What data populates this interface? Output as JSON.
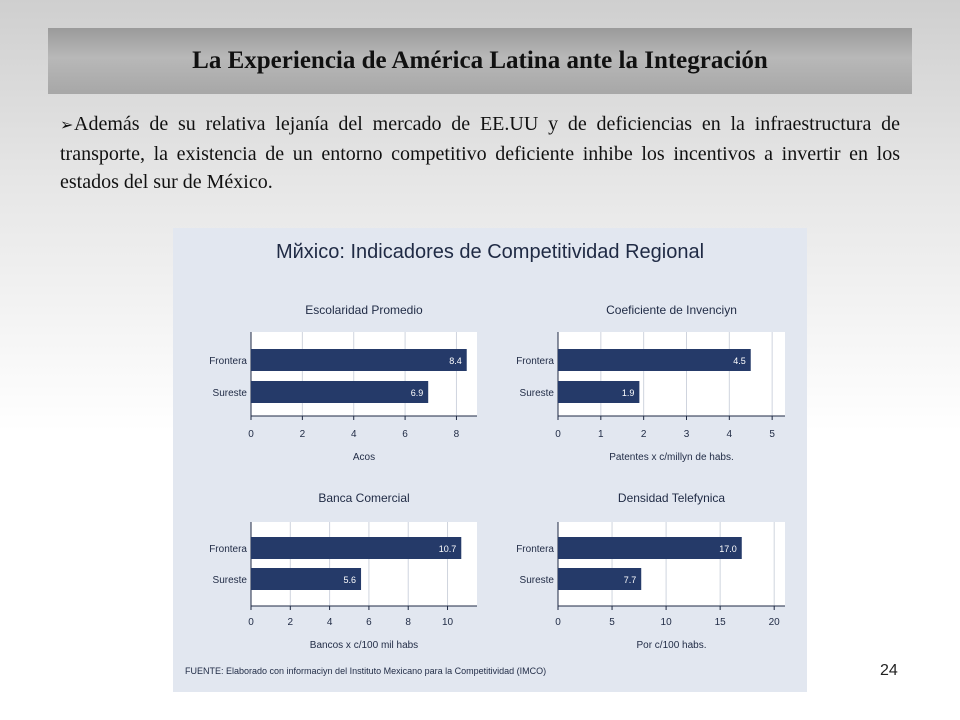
{
  "slide": {
    "title": "La Experiencia de América Latina ante la Integración",
    "bullet_symbol": "➢",
    "bullet_text": "Además de su relativa lejanía del mercado de EE.UU y de deficiencias en la infraestructura de transporte, la existencia de un entorno competitivo deficiente inhibe los incentivos a invertir en los estados del sur de México.",
    "page_number": "24"
  },
  "chart_panel": {
    "title": "Mйxico: Indicadores de Competitividad Regional",
    "source": "FUENTE: Elaborado con informaciуn del Instituto Mexicano para la Competitividad (IMCO)",
    "background_color": "#e2e7f0",
    "bar_color": "#253a69"
  },
  "chart_data": [
    {
      "type": "bar",
      "orientation": "horizontal",
      "title": "Escolaridad Promedio",
      "xlabel": "Acos",
      "categories": [
        "Frontera",
        "Sureste"
      ],
      "values": [
        8.4,
        6.9
      ],
      "value_labels": [
        "8.4",
        "6.9"
      ],
      "xlim": [
        0,
        8.8
      ],
      "ticks": [
        0,
        2,
        4,
        6,
        8
      ],
      "tick_labels": [
        "0",
        "2",
        "4",
        "6",
        "8"
      ],
      "grid": true
    },
    {
      "type": "bar",
      "orientation": "horizontal",
      "title": "Coeficiente de Invenciуn",
      "xlabel": "Patentes x c/millуn de habs.",
      "categories": [
        "Frontera",
        "Sureste"
      ],
      "values": [
        4.5,
        1.9
      ],
      "value_labels": [
        "4.5",
        "1.9"
      ],
      "xlim": [
        0,
        5.3
      ],
      "ticks": [
        0,
        1,
        2,
        3,
        4,
        5
      ],
      "tick_labels": [
        "0",
        "1",
        "2",
        "3",
        "4",
        "5"
      ],
      "grid": true
    },
    {
      "type": "bar",
      "orientation": "horizontal",
      "title": "Banca Comercial",
      "xlabel": "Bancos x c/100 mil habs",
      "categories": [
        "Frontera",
        "Sureste"
      ],
      "values": [
        10.7,
        5.6
      ],
      "value_labels": [
        "10.7",
        "5.6"
      ],
      "xlim": [
        0,
        11.5
      ],
      "ticks": [
        0,
        2,
        4,
        6,
        8,
        10
      ],
      "tick_labels": [
        "0",
        "2",
        "4",
        "6",
        "8",
        "10"
      ],
      "grid": true
    },
    {
      "type": "bar",
      "orientation": "horizontal",
      "title": "Densidad Telefуnica",
      "xlabel": "Por c/100 habs.",
      "categories": [
        "Frontera",
        "Sureste"
      ],
      "values": [
        17.0,
        7.7
      ],
      "value_labels": [
        "17.0",
        "7.7"
      ],
      "xlim": [
        0,
        21
      ],
      "ticks": [
        0,
        5,
        10,
        15,
        20
      ],
      "tick_labels": [
        "0",
        "5",
        "10",
        "15",
        "20"
      ],
      "grid": true
    }
  ]
}
